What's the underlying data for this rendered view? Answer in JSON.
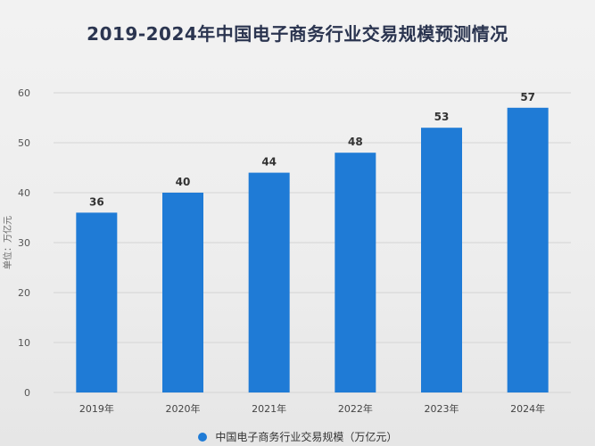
{
  "chart_data": {
    "type": "bar",
    "title": "2019-2024年中国电子商务行业交易规模预测情况",
    "ylabel": "单位：万亿元",
    "xlabel": "",
    "categories": [
      "2019年",
      "2020年",
      "2021年",
      "2022年",
      "2023年",
      "2024年"
    ],
    "series": [
      {
        "name": "中国电子商务行业交易规模（万亿元）",
        "values": [
          36,
          40,
          44,
          48,
          53,
          57
        ]
      }
    ],
    "data_labels": [
      "36",
      "40",
      "44",
      "48",
      "53",
      "57"
    ],
    "ylim": [
      0,
      60
    ],
    "yticks": [
      0,
      10,
      20,
      30,
      40,
      50,
      60
    ],
    "grid": true,
    "legend_position": "bottom",
    "colors": {
      "bar": "#1f7bd6",
      "grid": "#d4d4d4"
    }
  }
}
